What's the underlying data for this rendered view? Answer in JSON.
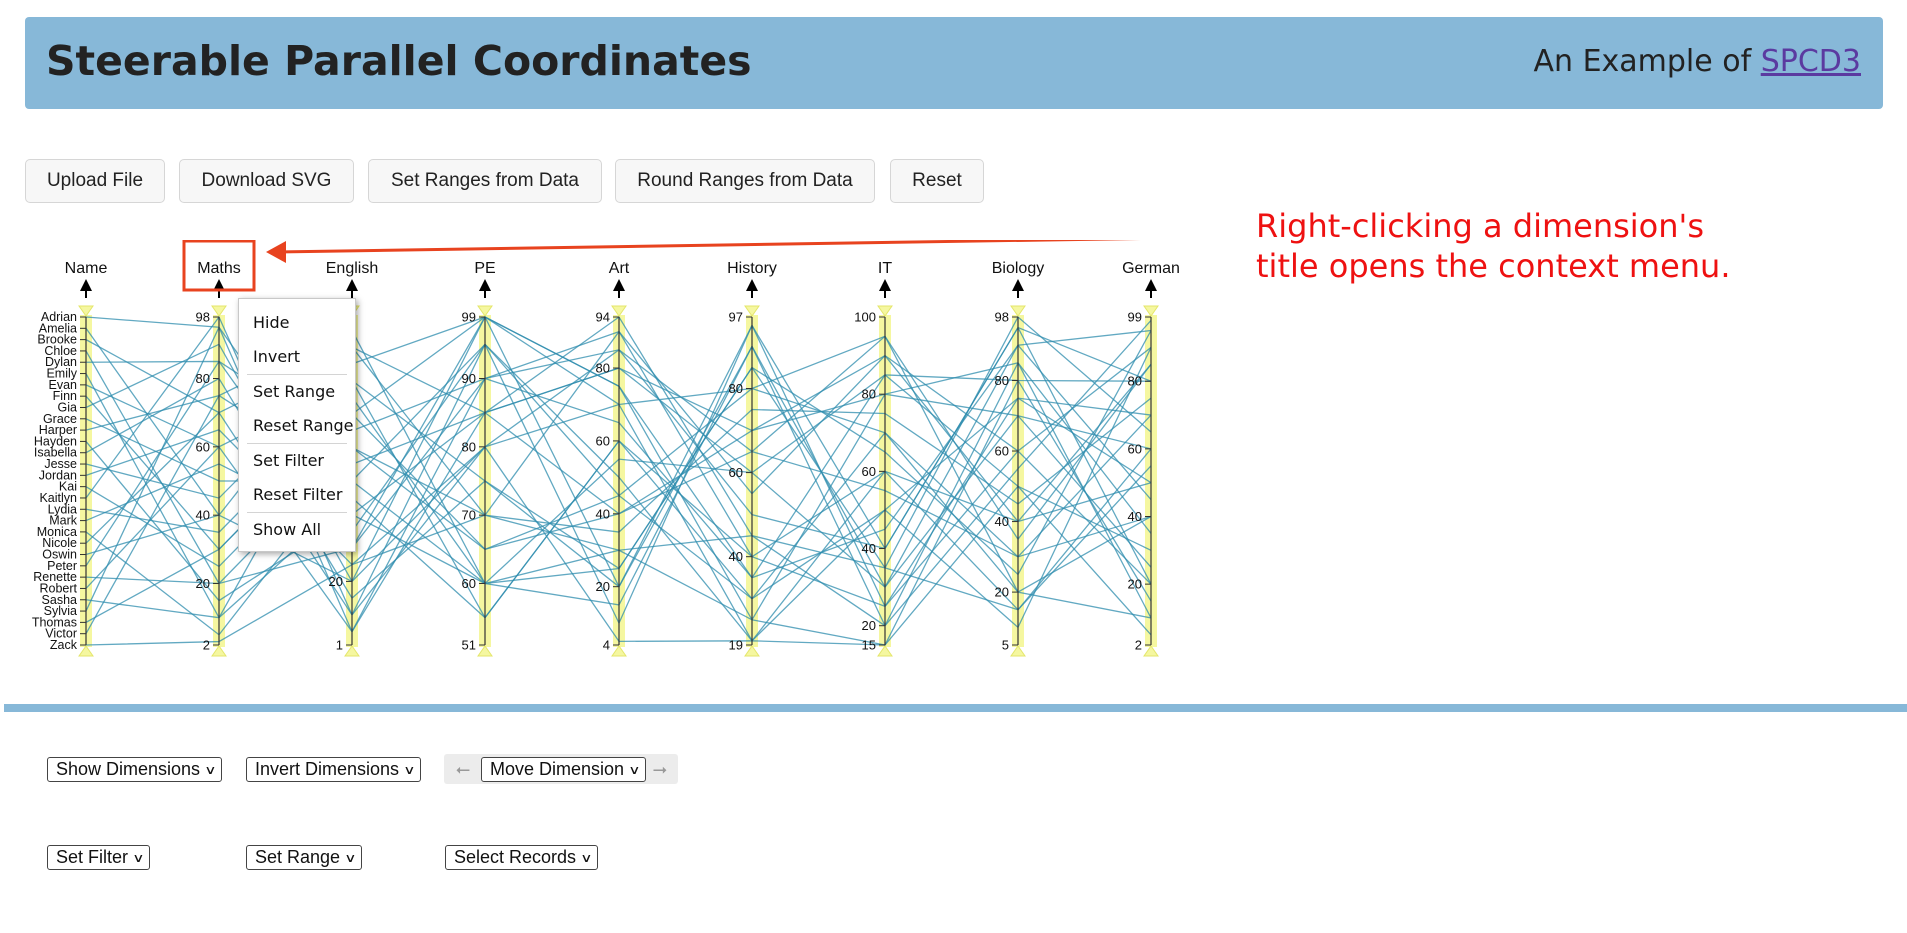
{
  "header": {
    "title": "Steerable Parallel Coordinates",
    "subtitle_prefix": "An Example of ",
    "subtitle_link": "SPCD3"
  },
  "toolbar": {
    "upload": "Upload File",
    "download": "Download SVG",
    "set_ranges": "Set Ranges from Data",
    "round_ranges": "Round Ranges from Data",
    "reset": "Reset"
  },
  "annotation": {
    "line1": "Right-clicking a dimension's",
    "line2": "title opens the context menu.",
    "color": "#ee1111"
  },
  "context_menu": {
    "items": [
      "Hide",
      "Invert",
      "Set Range",
      "Reset Range",
      "Set Filter",
      "Reset Filter",
      "Show All"
    ]
  },
  "controls": {
    "show_dimensions": "Show Dimensions",
    "invert_dimensions": "Invert Dimensions",
    "move_dimension": "Move Dimension",
    "move_left_icon": "arrow-left-icon",
    "move_right_icon": "arrow-right-icon",
    "set_filter": "Set Filter",
    "set_range": "Set Range",
    "select_records": "Select Records"
  },
  "colors": {
    "header_bg": "#87b8d8",
    "line": "#2e8cae",
    "axis_highlight": "#f5f7a0",
    "highlight_box": "#e8431f"
  },
  "chart_data": {
    "type": "parallel-coordinates",
    "dimensions": [
      {
        "name": "Name",
        "categorical": true
      },
      {
        "name": "Maths",
        "min": 2,
        "max": 98,
        "ticks": [
          98,
          80,
          60,
          40,
          20,
          2
        ]
      },
      {
        "name": "English",
        "min": 1,
        "max": 99,
        "ticks": [
          20,
          1
        ]
      },
      {
        "name": "PE",
        "min": 51,
        "max": 99,
        "ticks": [
          99,
          90,
          80,
          70,
          60,
          51
        ]
      },
      {
        "name": "Art",
        "min": 4,
        "max": 94,
        "ticks": [
          94,
          80,
          60,
          40,
          20,
          4
        ]
      },
      {
        "name": "History",
        "min": 19,
        "max": 97,
        "ticks": [
          97,
          80,
          60,
          40,
          19
        ]
      },
      {
        "name": "IT",
        "min": 15,
        "max": 100,
        "ticks": [
          100,
          80,
          60,
          40,
          20,
          15
        ]
      },
      {
        "name": "Biology",
        "min": 5,
        "max": 98,
        "ticks": [
          98,
          80,
          60,
          40,
          20,
          5
        ]
      },
      {
        "name": "German",
        "min": 2,
        "max": 99,
        "ticks": [
          99,
          80,
          60,
          40,
          20,
          2
        ]
      }
    ],
    "names": [
      "Adrian",
      "Amelia",
      "Brooke",
      "Chloe",
      "Dylan",
      "Emily",
      "Evan",
      "Finn",
      "Gia",
      "Grace",
      "Harper",
      "Hayden",
      "Isabella",
      "Jesse",
      "Jordan",
      "Kai",
      "Kaitlyn",
      "Lydia",
      "Mark",
      "Monica",
      "Nicole",
      "Oswin",
      "Peter",
      "Renette",
      "Robert",
      "Sasha",
      "Sylvia",
      "Thomas",
      "Victor",
      "Zack"
    ],
    "records": [
      [
        95,
        40,
        60,
        30,
        25,
        80,
        70,
        60
      ],
      [
        40,
        90,
        85,
        80,
        60,
        30,
        90,
        95
      ],
      [
        70,
        10,
        95,
        45,
        80,
        95,
        20,
        40
      ],
      [
        20,
        60,
        70,
        90,
        40,
        60,
        40,
        85
      ],
      [
        85,
        30,
        99,
        20,
        90,
        20,
        85,
        10
      ],
      [
        10,
        80,
        55,
        60,
        30,
        70,
        30,
        70
      ],
      [
        60,
        5,
        90,
        85,
        50,
        40,
        95,
        80
      ],
      [
        30,
        70,
        65,
        40,
        70,
        90,
        60,
        20
      ],
      [
        90,
        20,
        80,
        70,
        20,
        50,
        10,
        90
      ],
      [
        50,
        50,
        95,
        10,
        95,
        25,
        75,
        50
      ],
      [
        75,
        95,
        60,
        55,
        60,
        85,
        50,
        30
      ],
      [
        15,
        40,
        85,
        94,
        45,
        35,
        98,
        65
      ],
      [
        80,
        15,
        75,
        25,
        85,
        65,
        25,
        95
      ],
      [
        45,
        85,
        99,
        75,
        25,
        15,
        80,
        15
      ],
      [
        65,
        25,
        70,
        35,
        75,
        75,
        45,
        75
      ],
      [
        25,
        65,
        90,
        65,
        35,
        45,
        90,
        45
      ],
      [
        98,
        10,
        80,
        85,
        65,
        95,
        35,
        85
      ],
      [
        35,
        75,
        60,
        15,
        90,
        30,
        70,
        25
      ],
      [
        55,
        35,
        95,
        50,
        20,
        60,
        15,
        60
      ],
      [
        5,
        55,
        85,
        80,
        70,
        80,
        85,
        35
      ],
      [
        70,
        90,
        70,
        30,
        45,
        20,
        55,
        98
      ],
      [
        40,
        20,
        99,
        70,
        80,
        70,
        20,
        10
      ],
      [
        85,
        60,
        65,
        45,
        30,
        50,
        75,
        70
      ],
      [
        20,
        30,
        90,
        90,
        55,
        90,
        40,
        50
      ],
      [
        60,
        80,
        75,
        20,
        95,
        40,
        95,
        20
      ],
      [
        10,
        45,
        55,
        60,
        40,
        25,
        60,
        90
      ],
      [
        95,
        5,
        85,
        40,
        65,
        55,
        30,
        40
      ],
      [
        30,
        70,
        99,
        75,
        35,
        85,
        80,
        80
      ],
      [
        75,
        50,
        60,
        25,
        85,
        35,
        15,
        55
      ],
      [
        3,
        25,
        80,
        5,
        20,
        15,
        50,
        5
      ]
    ]
  }
}
